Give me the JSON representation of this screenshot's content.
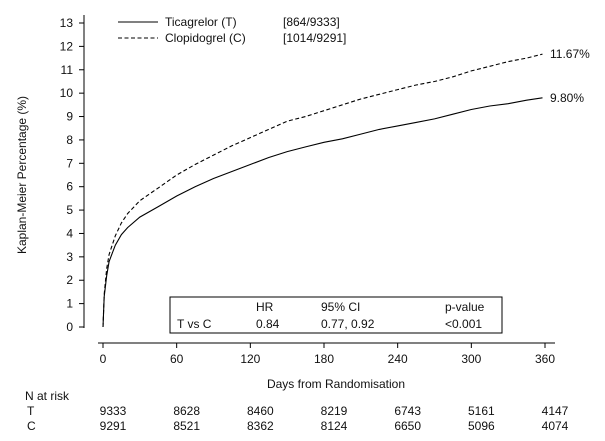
{
  "chart_data": {
    "type": "line",
    "title": "",
    "xlabel": "Days from Randomisation",
    "ylabel": "Kaplan-Meier Percentage (%)",
    "xlim": [
      0,
      360
    ],
    "ylim": [
      0,
      13
    ],
    "x_ticks": [
      0,
      60,
      120,
      180,
      240,
      300,
      360
    ],
    "y_ticks": [
      0,
      1,
      2,
      3,
      4,
      5,
      6,
      7,
      8,
      9,
      10,
      11,
      12,
      13
    ],
    "grid": false,
    "legend_position": "top-left",
    "series": [
      {
        "name": "Ticagrelor (T)",
        "count": "[864/9333]",
        "style": "solid",
        "end_label": "9.80%",
        "x": [
          0,
          1,
          3,
          5,
          10,
          15,
          20,
          30,
          45,
          60,
          75,
          90,
          105,
          120,
          135,
          150,
          165,
          180,
          195,
          210,
          225,
          240,
          255,
          270,
          285,
          300,
          315,
          330,
          345,
          358
        ],
        "y": [
          0,
          1.3,
          2.2,
          2.8,
          3.5,
          3.95,
          4.25,
          4.7,
          5.15,
          5.6,
          6.0,
          6.35,
          6.65,
          6.95,
          7.25,
          7.5,
          7.7,
          7.9,
          8.05,
          8.25,
          8.45,
          8.6,
          8.75,
          8.9,
          9.1,
          9.3,
          9.45,
          9.55,
          9.7,
          9.8
        ]
      },
      {
        "name": "Clopidogrel (C)",
        "count": "[1014/9291]",
        "style": "dashed",
        "end_label": "11.67%",
        "x": [
          0,
          1,
          3,
          5,
          10,
          15,
          20,
          30,
          45,
          60,
          75,
          90,
          105,
          120,
          135,
          150,
          165,
          180,
          195,
          210,
          225,
          240,
          255,
          270,
          285,
          300,
          315,
          330,
          345,
          358
        ],
        "y": [
          0,
          1.4,
          2.5,
          3.1,
          3.9,
          4.45,
          4.85,
          5.4,
          5.95,
          6.5,
          6.95,
          7.35,
          7.75,
          8.1,
          8.45,
          8.8,
          9.0,
          9.25,
          9.5,
          9.75,
          9.95,
          10.15,
          10.35,
          10.5,
          10.7,
          10.95,
          11.15,
          11.35,
          11.5,
          11.67
        ]
      }
    ],
    "stats_box": {
      "headers": [
        "HR",
        "95% CI",
        "p-value"
      ],
      "row_label": "T vs C",
      "values": [
        "0.84",
        "0.77, 0.92",
        "<0.001"
      ]
    },
    "risk_table": {
      "title": "N at risk",
      "rows": [
        {
          "label": "T",
          "values": [
            "9333",
            "8628",
            "8460",
            "8219",
            "6743",
            "5161",
            "4147"
          ]
        },
        {
          "label": "C",
          "values": [
            "9291",
            "8521",
            "8362",
            "8124",
            "6650",
            "5096",
            "4074"
          ]
        }
      ]
    }
  }
}
